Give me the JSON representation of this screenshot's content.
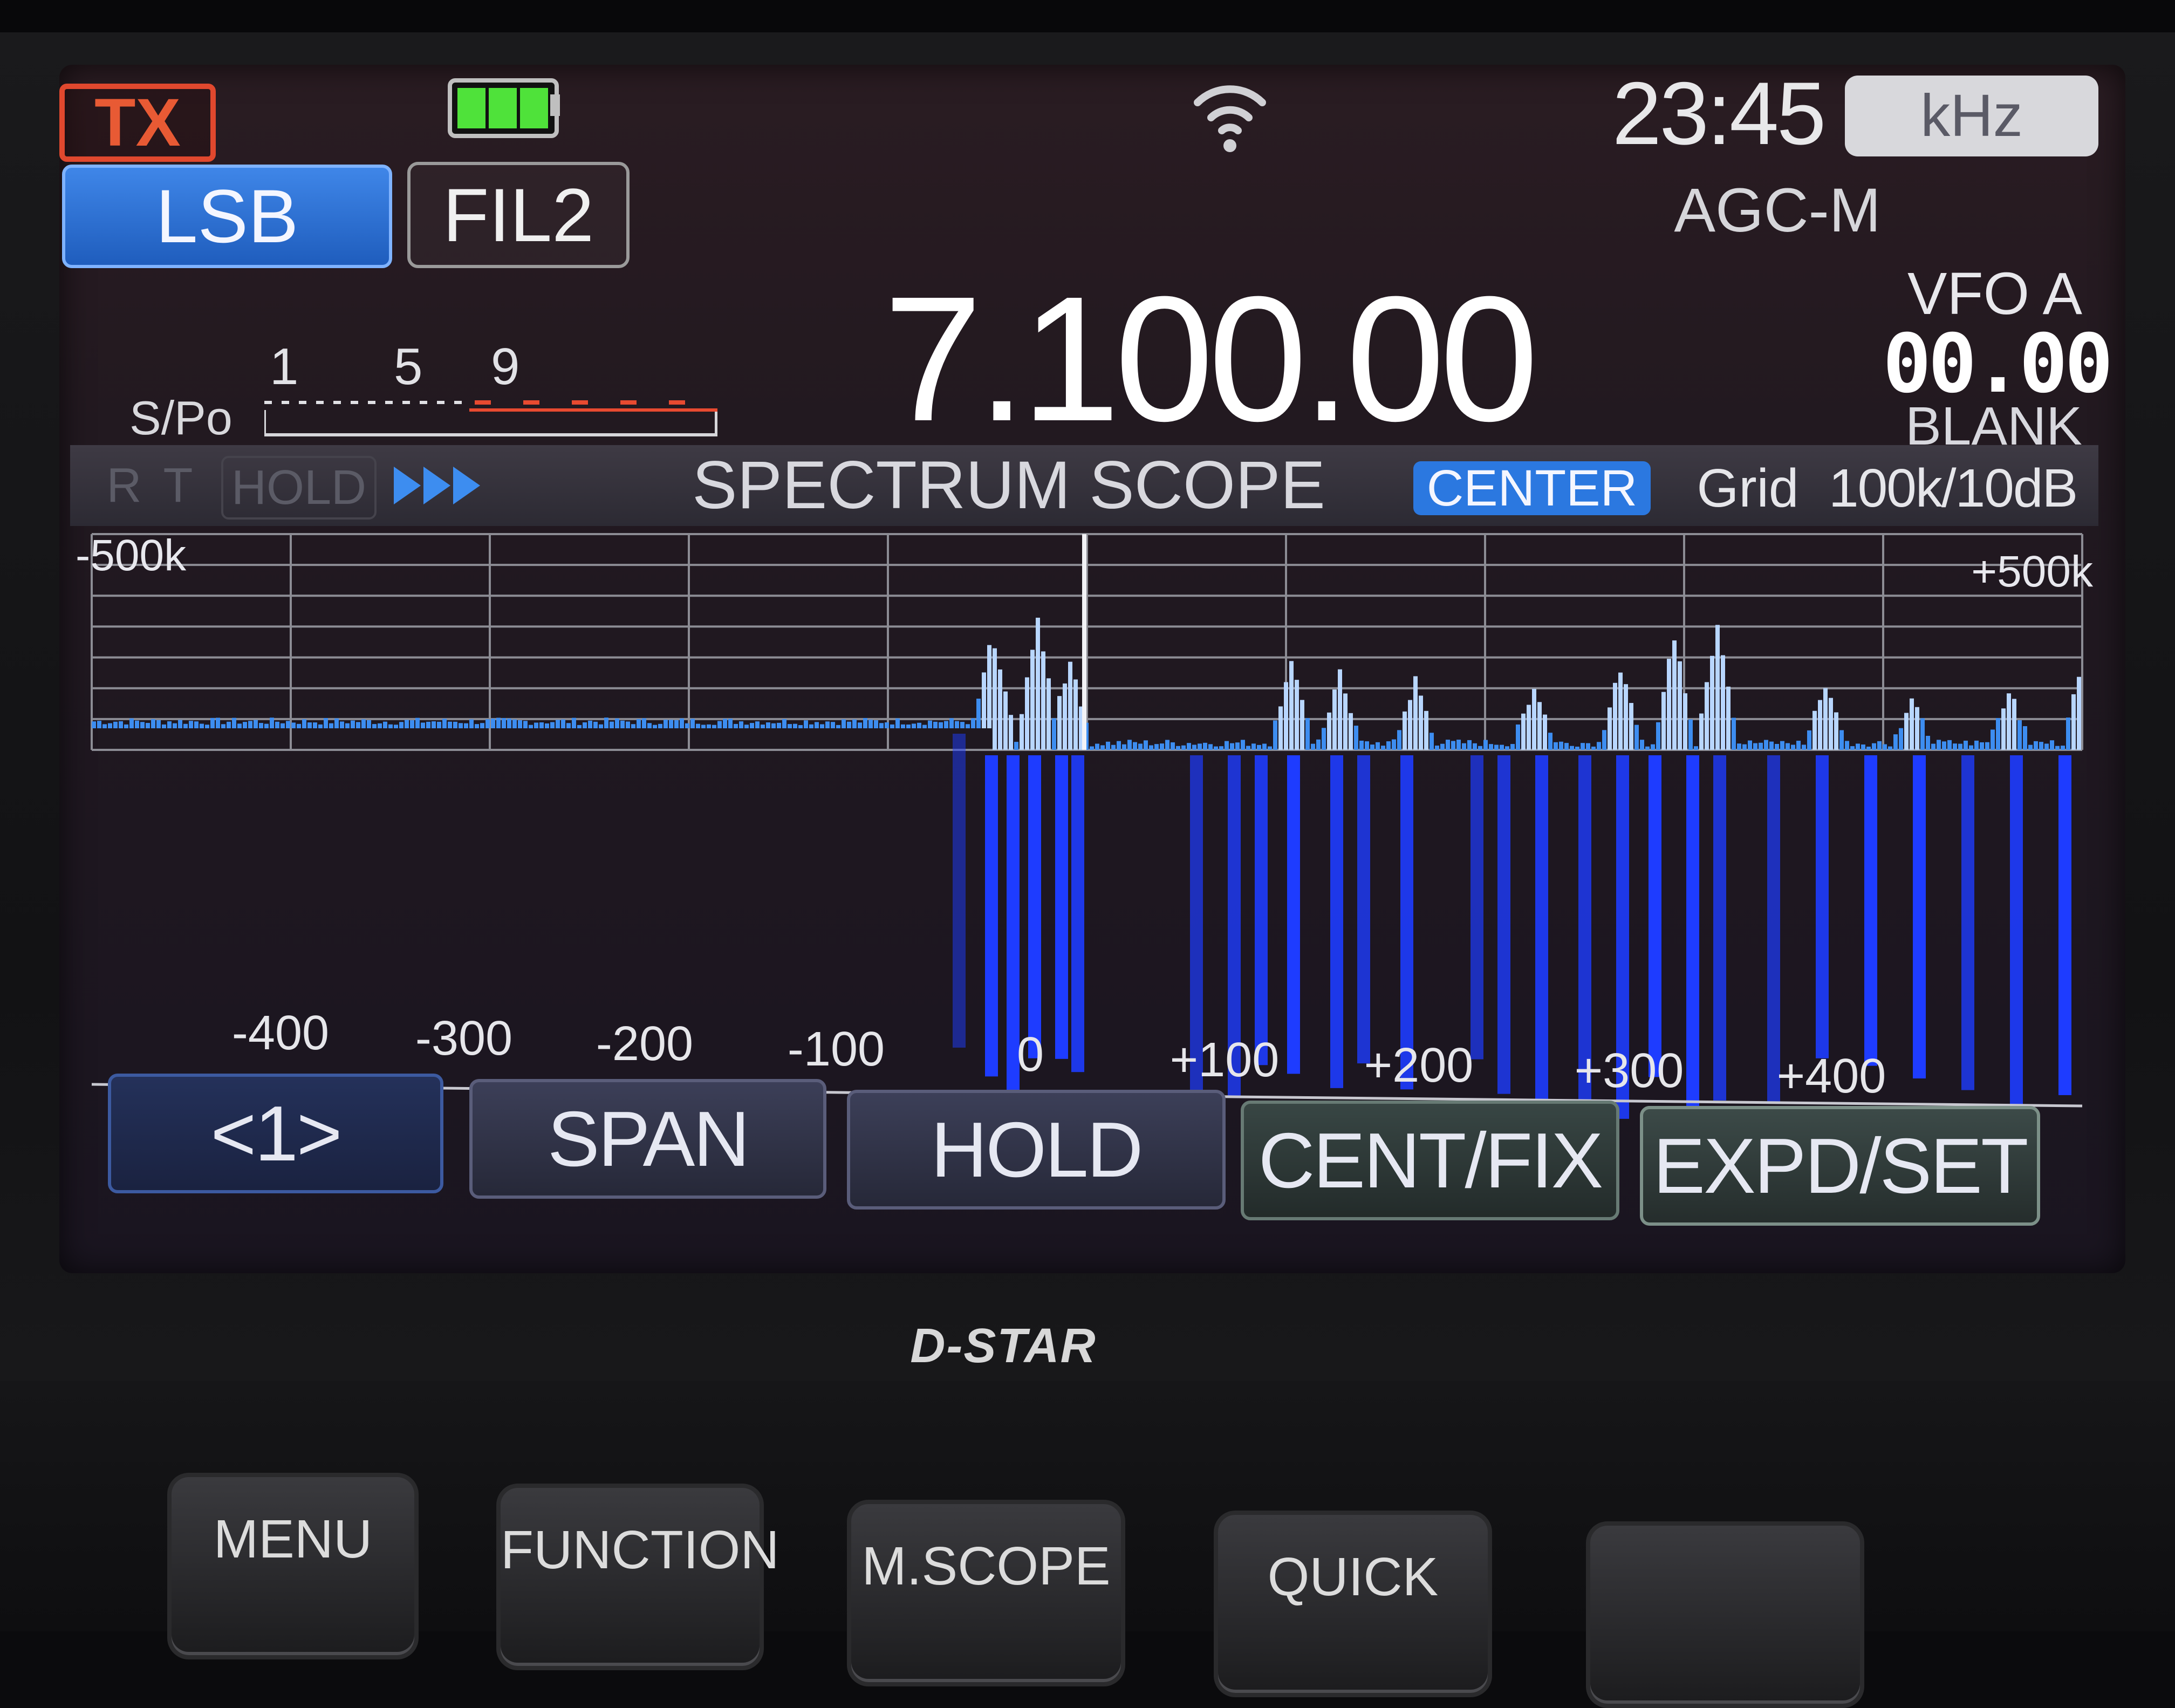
{
  "status_bar": {
    "tx_label": "TX",
    "clock": "23:45",
    "unit": "kHz"
  },
  "operating": {
    "mode": "LSB",
    "filter": "FIL2",
    "agc": "AGC-M",
    "frequency": "7.100.00",
    "vfo": "VFO A",
    "vfo_digits": "00.00",
    "blank": "BLANK"
  },
  "s_meter": {
    "label": "S/Po",
    "scale": [
      "1",
      "5",
      "9"
    ]
  },
  "scope_header": {
    "indicator_r": "R",
    "indicator_t": "T",
    "indicator_hold": "HOLD",
    "title": "SPECTRUM SCOPE",
    "mode_badge": "CENTER",
    "grid_label": "Grid",
    "grid_value": "100k/10dB"
  },
  "scope": {
    "edge_left": "-500k",
    "edge_right": "+500k",
    "tick_labels": [
      "-400",
      "-300",
      "-200",
      "-100",
      "0",
      "+100",
      "+200",
      "+300",
      "+400"
    ],
    "colors": {
      "spectrum": "#3d8df0",
      "waterfall": "#1e3cff",
      "grid": "#8c8c94"
    }
  },
  "softkeys": {
    "page": "<1>",
    "span": "SPAN",
    "hold": "HOLD",
    "cent_fix": "CENT/FIX",
    "expd_set": "EXPD/SET"
  },
  "hardware": {
    "brand": "D-STAR",
    "menu": "MENU",
    "function": "FUNCTION",
    "mscope": "M.SCOPE",
    "quick": "QUICK"
  },
  "icons": {
    "battery": "battery-full-icon",
    "signal": "wifi-signal-icon",
    "scan_arrows": "triple-arrow-icon"
  }
}
